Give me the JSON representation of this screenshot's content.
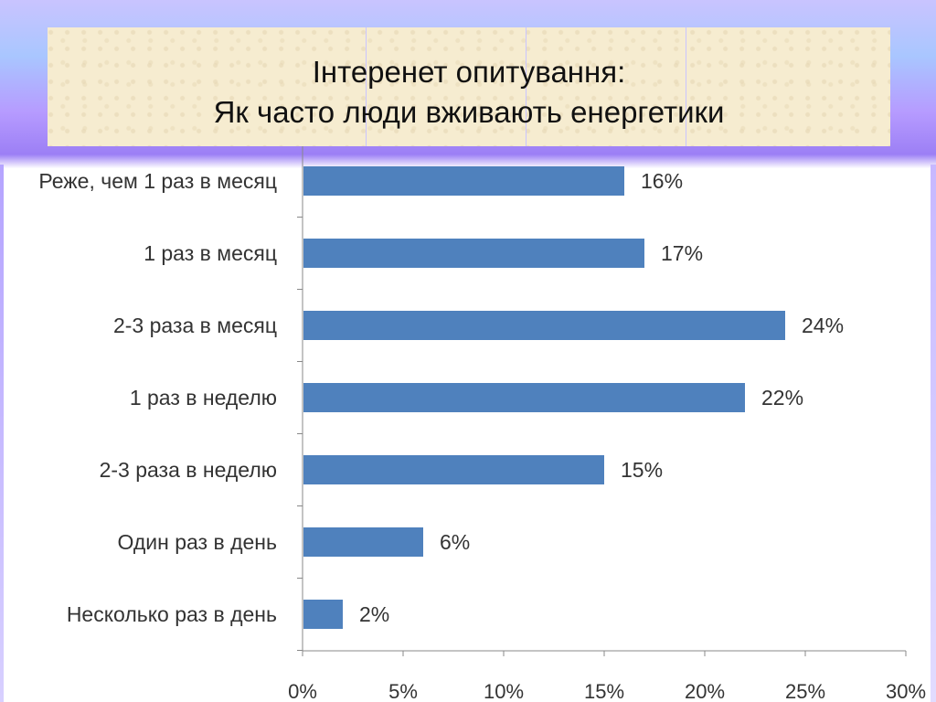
{
  "title": {
    "line1": "Інтеренет опитування:",
    "line2": "Як часто люди вживають енергетики"
  },
  "colors": {
    "bar": "#4f81bd",
    "title_bg": "#f6ecd0",
    "axis": "#888888"
  },
  "chart_data": {
    "type": "bar",
    "orientation": "horizontal",
    "categories": [
      "Реже, чем 1 раз в месяц",
      "1 раз в месяц",
      "2-3 раза в месяц",
      "1 раз в неделю",
      "2-3 раза в неделю",
      "Один раз в день",
      "Несколько раз в день"
    ],
    "values": [
      16,
      17,
      24,
      22,
      15,
      6,
      2
    ],
    "value_labels": [
      "16%",
      "17%",
      "24%",
      "22%",
      "15%",
      "6%",
      "2%"
    ],
    "xlim": [
      0,
      30
    ],
    "x_ticks": [
      0,
      5,
      10,
      15,
      20,
      25,
      30
    ],
    "x_tick_labels": [
      "0%",
      "5%",
      "10%",
      "15%",
      "20%",
      "25%",
      "30%"
    ],
    "grid": false
  }
}
